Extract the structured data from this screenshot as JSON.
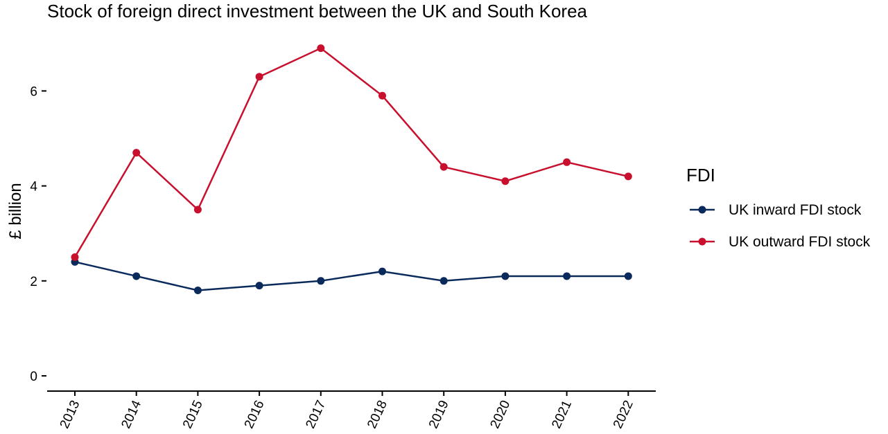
{
  "chart_data": {
    "type": "line",
    "title": "Stock of foreign direct investment between the UK and South Korea",
    "xlabel": "",
    "ylabel": "£ billion",
    "categories": [
      "2013",
      "2014",
      "2015",
      "2016",
      "2017",
      "2018",
      "2019",
      "2020",
      "2021",
      "2022"
    ],
    "ylim": [
      0,
      7
    ],
    "yticks": [
      0,
      2,
      4,
      6
    ],
    "grid": false,
    "legend_title": "FDI",
    "legend_position": "right",
    "series": [
      {
        "name": "UK inward FDI stock",
        "color": "#0b2a5c",
        "values": [
          2.4,
          2.1,
          1.8,
          1.9,
          2.0,
          2.2,
          2.0,
          2.1,
          2.1,
          2.1
        ]
      },
      {
        "name": "UK outward FDI stock",
        "color": "#c8102e",
        "values": [
          2.5,
          4.7,
          3.5,
          6.3,
          6.9,
          5.9,
          4.4,
          4.1,
          4.5,
          4.2
        ]
      }
    ]
  }
}
